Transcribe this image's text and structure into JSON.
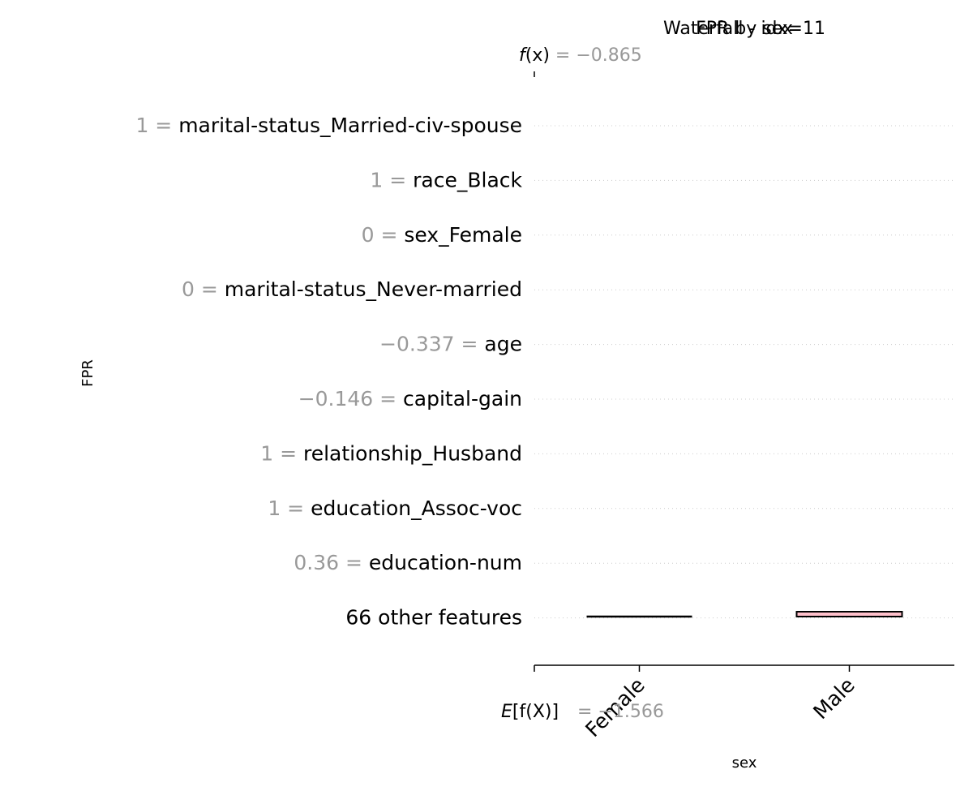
{
  "titles": {
    "waterfall": "Waterfall - idx=11",
    "fpr": "FPR by sex"
  },
  "fx": {
    "label_fn": "f",
    "label_arg": "(x)",
    "value_text": " = −0.865"
  },
  "expected": {
    "label_E": "E",
    "label_rest": "[f(X)]",
    "value_text": "= −1.566"
  },
  "colors": {
    "text": "#000000",
    "muted": "#999999",
    "grid": "#cccccc",
    "male_bar_fill": "#ffc0cb",
    "bar_stroke": "#000000"
  },
  "chart_data": [
    {
      "type": "bar",
      "title": "Waterfall - idx=11",
      "features": [
        {
          "value": "1",
          "name": "marital-status_Married-civ-spouse"
        },
        {
          "value": "1",
          "name": "race_Black"
        },
        {
          "value": "0",
          "name": "sex_Female"
        },
        {
          "value": "0",
          "name": "marital-status_Never-married"
        },
        {
          "value": "−0.337",
          "name": "age"
        },
        {
          "value": "−0.146",
          "name": "capital-gain"
        },
        {
          "value": "1",
          "name": "relationship_Husband"
        },
        {
          "value": "1",
          "name": "education_Assoc-voc"
        },
        {
          "value": "0.36",
          "name": "education-num"
        },
        {
          "value": "",
          "name": "66 other features"
        }
      ],
      "f_x": -0.865,
      "expected_value": -1.566
    },
    {
      "type": "bar",
      "title": "FPR by sex",
      "categories": [
        "Female",
        "Male"
      ],
      "values": [
        0.0,
        0.005
      ],
      "xlabel": "sex",
      "ylabel": "FPR",
      "ylim": [
        0,
        0.06
      ]
    }
  ]
}
